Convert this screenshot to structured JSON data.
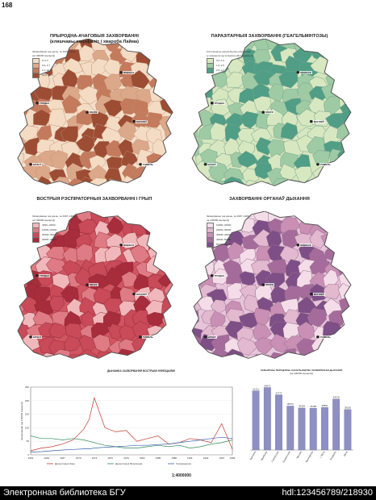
{
  "page_number": "168",
  "maps": [
    {
      "id": "natural-focal",
      "title_lines": [
        "ПРЫРОДНА-АЧАГОВЫЯ ЗАХВОРВАННІ",
        "(кляшчавы энцэфаліт і хвароба Лайма)"
      ],
      "legend_caption": [
        "Захворванне (на дзень, за 1997–1999 г.,",
        "на 100000 жыхароў)"
      ],
      "legend_items": [
        "0–0,3",
        "0,3–2,7",
        "2,7–10,2",
        "10,2–30,7"
      ],
      "colors": [
        "#f4dcc4",
        "#dca88a",
        "#c47a5c",
        "#9c4d33"
      ],
      "base_color": "#f3dfc9",
      "border_color": "#c28d72",
      "cities": [
        "ВІЦЕБСК",
        "МІНСК",
        "МАГІЛЁЎ",
        "ГРОДНА",
        "ГОМЕЛЬ",
        "БРЭСТ"
      ]
    },
    {
      "id": "parasitic",
      "title_lines": [
        "ПАРАЗІТАРНЫЯ ЗАХВОРВАННІ (ГЕАГЕЛЬМІНТОЗЫ)"
      ],
      "legend_caption": [
        "Ахопленасць насельніцтва гельмінтамі",
        "(у працэнтах ад колькасці абследаваных)"
      ],
      "legend_items": [
        "0,2–1,0",
        "1,0–2,5",
        "2,5–4,7"
      ],
      "colors": [
        "#d7e8c1",
        "#9ecba4",
        "#4f9e85"
      ],
      "base_color": "#d5e6bd",
      "border_color": "#7aa38f",
      "cities": [
        "ВІЦЕБСК",
        "МІНСК",
        "МАГІЛЁЎ",
        "ГРОДНА",
        "ГОМЕЛЬ",
        "БРЭСТ"
      ]
    },
    {
      "id": "acute-respiratory",
      "title_lines": [
        "ВОСТРЫЯ РЭСПІРАТОРНЫЯ ЗАХВОРВАННІ І ГРЫП"
      ],
      "legend_caption": [
        "Захворванне (на дзень, за 1997–1999 г.,",
        "на 100000 жыхароў)"
      ],
      "legend_items": [
        "4996–10000",
        "10000–20000",
        "20000–30000",
        "30000–40000"
      ],
      "colors": [
        "#f0b8bb",
        "#de7b84",
        "#c94a58",
        "#a72c3c"
      ],
      "base_color": "#d25562",
      "border_color": "#8f2a36",
      "cities": [
        "ВІЦЕБСК",
        "МІНСК",
        "МАГІЛЁЎ",
        "ГРОДНА",
        "ГОМЕЛЬ",
        "БРЭСТ"
      ]
    },
    {
      "id": "respiratory-organs",
      "title_lines": [
        "ЗАХВОРВАННІ ОРГАНАЎ ДЫХАННЯ"
      ],
      "legend_caption": [
        "Захворванне (на дзень, за 1997–1999 г.,",
        "на 100000 жыхароў)"
      ],
      "legend_items": [
        "10000–20000",
        "20000–30000",
        "30000–40000",
        "40000–50000",
        "50000–75000"
      ],
      "colors": [
        "#f4dde8",
        "#e2b9cf",
        "#c98fb4",
        "#a56b9b",
        "#7d4f86"
      ],
      "base_color": "#e6c4da",
      "border_color": "#9a6f91",
      "cities": [
        "ВІЦЕБСК",
        "МІНСК",
        "МАГІЛЁЎ",
        "ГРОДНА",
        "ГОМЕЛЬ",
        "БРЭСТ"
      ]
    }
  ],
  "line_chart": {
    "title": "ДЫНАМІКА ЗАХВОРВАННЯ ВОСТРЫМІ ІНФЕКЦЫЯМІ",
    "ylabel": "Захворванне (на 100000 жыхароў)",
    "y_ticks": [
      "0",
      "50",
      "100",
      "150",
      "200",
      "250"
    ],
    "x_ticks": [
      "1961",
      "1964",
      "1967",
      "1970",
      "1973",
      "1976",
      "1979",
      "1982",
      "1985",
      "1988",
      "1991",
      "1994",
      "1997",
      "1999"
    ],
    "legend": [
      "Дызентэрыя Зоне",
      "Дызентэрыя Флекснера",
      "Сальманелёз"
    ],
    "colors": [
      "#c0392b",
      "#2e8b57",
      "#3a5fa8"
    ]
  },
  "chart_data": [
    {
      "type": "line",
      "x": [
        1961,
        1963,
        1965,
        1967,
        1969,
        1971,
        1972,
        1973,
        1975,
        1977,
        1979,
        1981,
        1983,
        1985,
        1987,
        1989,
        1991,
        1993,
        1995,
        1997,
        1999
      ],
      "series": [
        {
          "name": "Дызентэрыя Зоне",
          "values": [
            15,
            25,
            30,
            40,
            55,
            95,
            130,
            210,
            100,
            85,
            90,
            50,
            60,
            70,
            40,
            45,
            60,
            55,
            45,
            115,
            20
          ]
        },
        {
          "name": "Дызентэрыя Флекснера",
          "values": [
            70,
            60,
            60,
            55,
            60,
            55,
            50,
            45,
            35,
            30,
            25,
            25,
            30,
            35,
            30,
            35,
            25,
            30,
            40,
            45,
            55
          ]
        },
        {
          "name": "Сальманелёз",
          "values": [
            10,
            12,
            15,
            18,
            20,
            22,
            22,
            25,
            28,
            30,
            32,
            35,
            35,
            38,
            40,
            45,
            50,
            55,
            60,
            65,
            60
          ]
        }
      ],
      "ylim": [
        0,
        250
      ],
      "xlim": [
        1961,
        1999
      ]
    },
    {
      "type": "bar",
      "title": "ЗАВЫРАНЫ ПЕРАДЗЕНЬ НАСЕЛЬНІЦТВА ЗАХВОРВАННІ ДЫХАННЯ",
      "subtitle": "(на 100000 жыхароў)",
      "categories": [
        "Брэсцкая",
        "Віцебская",
        "Гомельская",
        "Гродзенская",
        "Мінская",
        "Магілёўская",
        "г. Мінск",
        "Беларусь",
        "Мінск"
      ],
      "values": [
        51221,
        54072,
        47777,
        38070,
        36329,
        36188,
        36881,
        44178,
        35028
      ],
      "value_labels": [
        "51221",
        "54072",
        "47777",
        "38070",
        "36329",
        "36188",
        "36881",
        "44178",
        "35028"
      ],
      "color": "#8e8fc2"
    }
  ],
  "scale": "1:4000000",
  "footer": {
    "left": "Электронная библиотека БГУ",
    "right": "hdl:123456789/218930"
  }
}
